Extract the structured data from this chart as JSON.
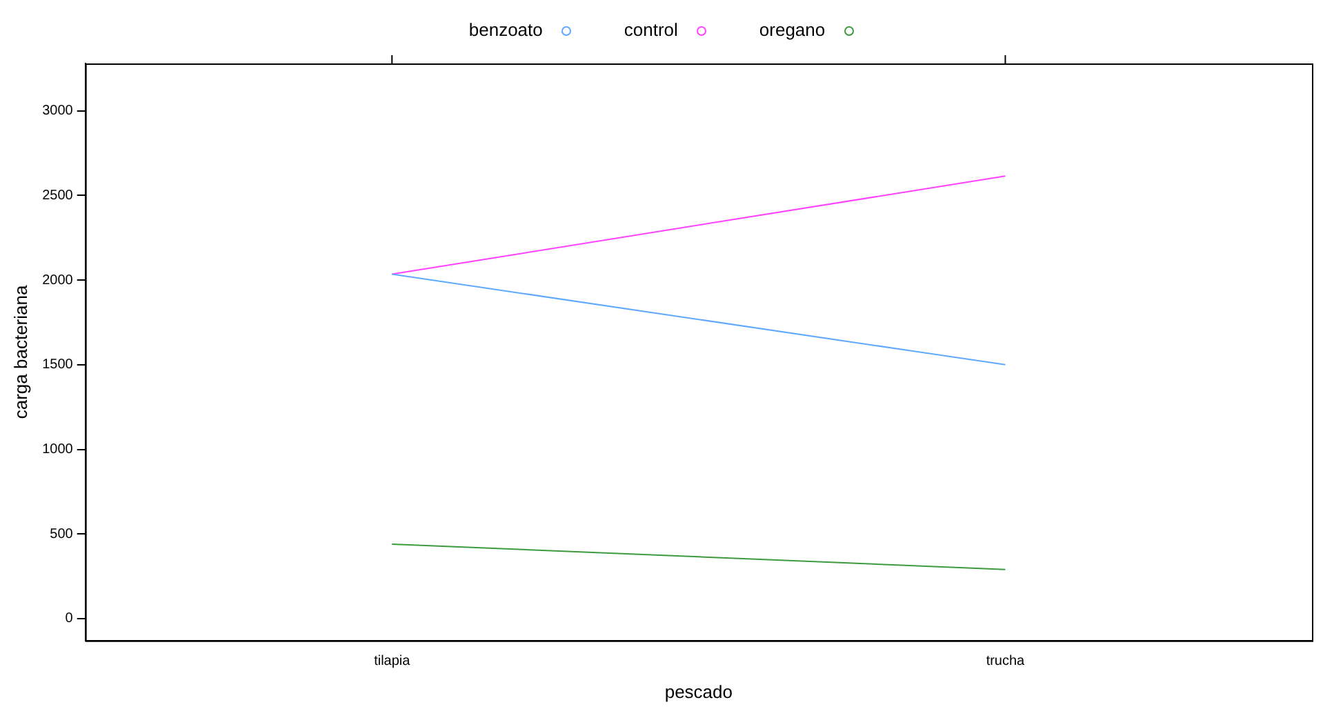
{
  "chart_data": {
    "type": "line",
    "xlabel": "pescado",
    "ylabel": "carga bacteriana",
    "categories": [
      "tilapia",
      "trucha"
    ],
    "series": [
      {
        "name": "benzoato",
        "color": "#5ea8ff",
        "values": [
          2035,
          1500
        ]
      },
      {
        "name": "control",
        "color": "#ff40ff",
        "values": [
          2035,
          2615
        ]
      },
      {
        "name": "oregano",
        "color": "#3c9a3c",
        "values": [
          440,
          290
        ]
      }
    ],
    "ylim": [
      -130,
      3280
    ],
    "yticks": [
      0,
      500,
      1000,
      1500,
      2000,
      2500,
      3000
    ],
    "grid": false,
    "legend": "top",
    "marker": "none",
    "line_style": "solid"
  }
}
